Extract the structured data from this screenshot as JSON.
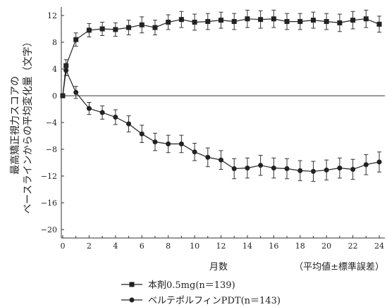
{
  "chart_data": {
    "type": "line",
    "title": "",
    "xlabel": "月数",
    "xlabel_note": "（平均値±標準誤差）",
    "ylabel_lines": [
      "最高矯正視力スコアの",
      "ベースラインからの平均変化量（文字）"
    ],
    "xlim": [
      0,
      24
    ],
    "ylim": [
      -20,
      12
    ],
    "x_ticks": [
      0,
      2,
      4,
      6,
      8,
      10,
      12,
      14,
      16,
      18,
      20,
      22,
      24
    ],
    "y_ticks": [
      12,
      8,
      4,
      0,
      -4,
      -8,
      -12,
      -16,
      -20
    ],
    "y_tick_labels": [
      "12",
      "8",
      "4",
      "0",
      "−4",
      "−8",
      "−12",
      "−16",
      "−20"
    ],
    "zero_line": true,
    "legend_position": "bottom",
    "x": [
      0,
      0.25,
      1,
      2,
      3,
      4,
      5,
      6,
      7,
      8,
      9,
      10,
      11,
      12,
      13,
      14,
      15,
      16,
      17,
      18,
      19,
      20,
      21,
      22,
      23,
      24
    ],
    "series": [
      {
        "name": "本剤0.5mg(n＝139)",
        "marker": "square",
        "values": [
          0,
          4.5,
          8.4,
          9.8,
          10.0,
          9.9,
          10.2,
          10.6,
          10.2,
          11.0,
          11.4,
          11.0,
          11.1,
          11.3,
          11.1,
          11.5,
          11.4,
          11.5,
          11.1,
          11.1,
          11.3,
          11.1,
          10.9,
          11.3,
          11.5,
          10.7
        ],
        "errors": [
          0,
          0.9,
          1.0,
          1.0,
          1.0,
          1.0,
          1.1,
          1.2,
          1.1,
          1.1,
          1.2,
          1.2,
          1.2,
          1.2,
          1.2,
          1.3,
          1.3,
          1.3,
          1.2,
          1.2,
          1.2,
          1.2,
          1.3,
          1.3,
          1.3,
          1.2
        ]
      },
      {
        "name": "ベルテポルフィンPDT(n＝143)",
        "marker": "circle",
        "values": [
          0,
          3.8,
          0.5,
          -1.9,
          -2.5,
          -3.2,
          -4.2,
          -5.7,
          -6.9,
          -7.2,
          -7.2,
          -8.4,
          -9.2,
          -9.6,
          -10.9,
          -10.8,
          -10.4,
          -10.8,
          -10.9,
          -11.2,
          -11.3,
          -11.1,
          -10.8,
          -11.0,
          -10.3,
          -9.9
        ],
        "errors": [
          0,
          0.8,
          0.9,
          0.9,
          1.0,
          1.1,
          1.2,
          1.3,
          1.3,
          1.3,
          1.3,
          1.3,
          1.4,
          1.4,
          1.5,
          1.5,
          1.5,
          1.5,
          1.5,
          1.5,
          1.5,
          1.5,
          1.5,
          1.5,
          1.5,
          1.5
        ]
      }
    ]
  }
}
